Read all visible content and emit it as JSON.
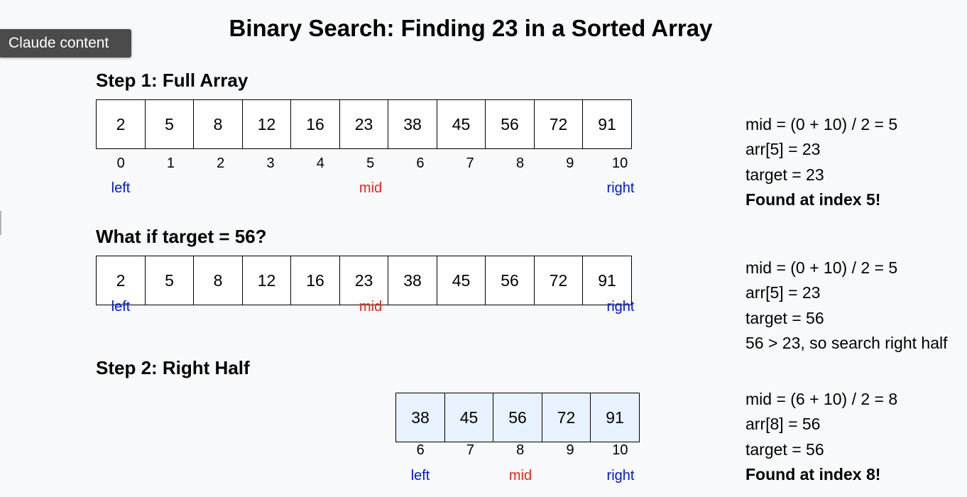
{
  "badge": "Claude content",
  "title": "Binary Search: Finding 23 in a Sorted Array",
  "sections": [
    {
      "heading": "Step 1: Full Array",
      "cells": [
        "2",
        "5",
        "8",
        "12",
        "16",
        "23",
        "38",
        "45",
        "56",
        "72",
        "91"
      ],
      "indices": [
        "0",
        "1",
        "2",
        "3",
        "4",
        "5",
        "6",
        "7",
        "8",
        "9",
        "10"
      ],
      "pointers": {
        "left": "left",
        "mid": "mid",
        "right": "right"
      },
      "notes": [
        "mid = (0 + 10) / 2 = 5",
        "arr[5] = 23",
        "target = 23",
        "Found at index 5!"
      ]
    },
    {
      "heading": "What if target = 56?",
      "cells": [
        "2",
        "5",
        "8",
        "12",
        "16",
        "23",
        "38",
        "45",
        "56",
        "72",
        "91"
      ],
      "pointers": {
        "left": "left",
        "mid": "mid",
        "right": "right"
      },
      "notes": [
        "mid = (0 + 10) / 2 = 5",
        "arr[5] = 23",
        "target = 56",
        "56 > 23, so search right half"
      ]
    },
    {
      "heading": "Step 2: Right Half",
      "cells": [
        "38",
        "45",
        "56",
        "72",
        "91"
      ],
      "indices": [
        "6",
        "7",
        "8",
        "9",
        "10"
      ],
      "pointers": {
        "left": "left",
        "mid": "mid",
        "right": "right"
      },
      "notes": [
        "mid = (6 + 10) / 2 = 8",
        "arr[8] = 56",
        "target = 56",
        "Found at index 8!"
      ]
    }
  ],
  "colors": {
    "pointer_blue": "#0018cc",
    "pointer_red": "#e02a1f",
    "highlight": "#e7f2fe"
  }
}
